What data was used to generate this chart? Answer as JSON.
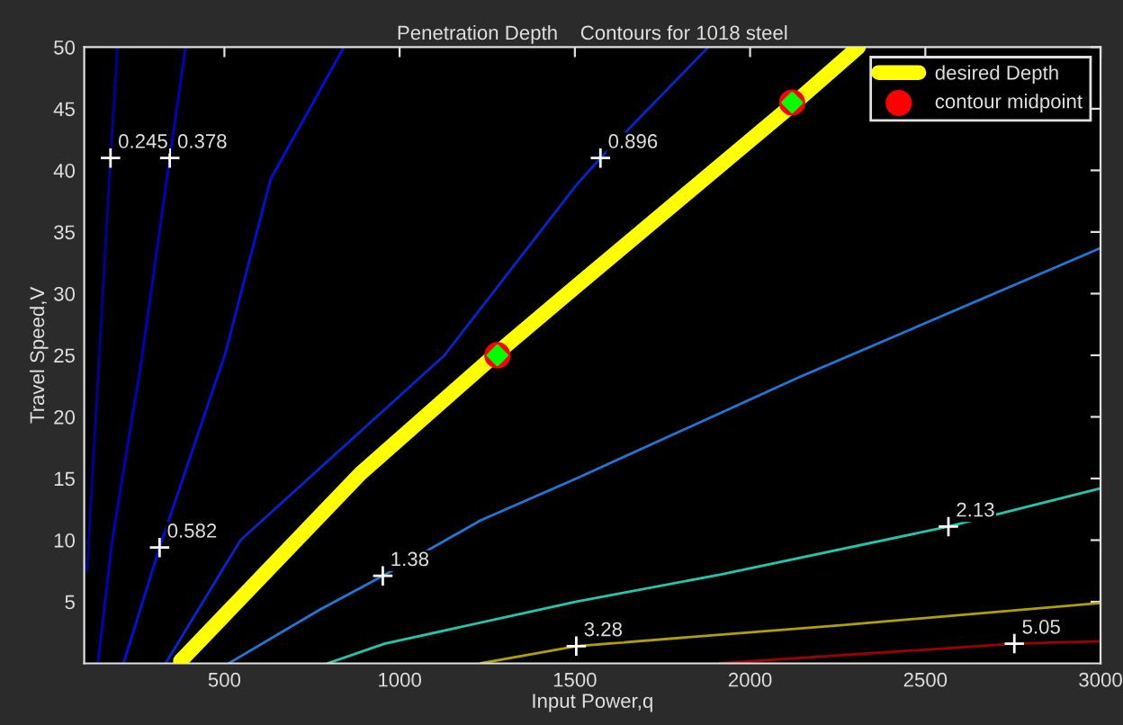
{
  "chart_data": {
    "type": "line",
    "title": "Penetration Depth    Contours for 1018 steel",
    "xlabel": "Input Power,q",
    "ylabel": "Travel Speed,V",
    "xlim": [
      100,
      3000
    ],
    "ylim": [
      0,
      50
    ],
    "xticks": [
      500,
      1000,
      1500,
      2000,
      2500,
      3000
    ],
    "yticks": [
      5,
      10,
      15,
      20,
      25,
      30,
      35,
      40,
      45,
      50
    ],
    "grid": false,
    "legend": "top right",
    "series": [
      {
        "color": "#0000a0",
        "x": [
          108,
          175,
          195
        ],
        "values": [
          7.5,
          41,
          50
        ]
      },
      {
        "color": "#0000c8",
        "x": [
          139,
          180,
          264,
          344,
          389
        ],
        "values": [
          0,
          10,
          24.7,
          41,
          50
        ]
      },
      {
        "color": "#0010e0",
        "x": [
          212,
          315,
          503,
          632,
          841
        ],
        "values": [
          0,
          9.4,
          25.2,
          39.3,
          50
        ]
      },
      {
        "color": "#0028d0",
        "x": [
          332,
          546,
          1128,
          1504,
          1573,
          1881
        ],
        "values": [
          0,
          10,
          25,
          38.8,
          41,
          50
        ]
      },
      {
        "color": "#1e78d8",
        "x": [
          512,
          769,
          952,
          1231,
          1504,
          2139,
          3000
        ],
        "values": [
          0,
          4.3,
          7.1,
          11.6,
          15,
          23.2,
          33.7
        ]
      },
      {
        "color": "#20c8b0",
        "x": [
          794,
          957,
          1504,
          1914,
          2566,
          3000
        ],
        "values": [
          0,
          1.6,
          5,
          7.2,
          11.1,
          14.2
        ]
      },
      {
        "color": "#b0a000",
        "x": [
          1231,
          1504,
          2258,
          3000
        ],
        "values": [
          0,
          1.4,
          3.1,
          4.9
        ]
      },
      {
        "color": "#a00000",
        "x": [
          1914,
          2754,
          3000
        ],
        "values": [
          0,
          1.6,
          1.8
        ]
      },
      {
        "name": "desired Depth",
        "color": "#ffff00",
        "x": [
          375,
          888,
          1279,
          1504,
          2120,
          2309
        ],
        "values": [
          0.2,
          15.4,
          25.2,
          30.6,
          45.3,
          50
        ]
      },
      {
        "name": "contour midpoint",
        "type": "scatter",
        "marker": "circle",
        "color": "#ff0000",
        "x": [
          1279,
          2120
        ],
        "values": [
          25,
          45.5
        ]
      },
      {
        "type": "scatter",
        "marker": "diamond",
        "color": "#00ff00",
        "x": [
          1279,
          2120
        ],
        "values": [
          25,
          45.5
        ]
      },
      {
        "type": "scatter",
        "marker": "cross",
        "color": "#ffffff",
        "x": [
          175,
          344,
          315,
          1573,
          952,
          2566,
          1504,
          2754
        ],
        "values": [
          41,
          41,
          9.4,
          41,
          7.1,
          11.1,
          1.4,
          1.6
        ]
      }
    ],
    "annotations": [
      {
        "text": "0.245",
        "x": 175,
        "y": 41
      },
      {
        "text": "0.378",
        "x": 344,
        "y": 41
      },
      {
        "text": "0.582",
        "x": 315,
        "y": 9.4
      },
      {
        "text": "0.896",
        "x": 1573,
        "y": 41
      },
      {
        "text": "1.38",
        "x": 952,
        "y": 7.1
      },
      {
        "text": "2.13",
        "x": 2566,
        "y": 11.1
      },
      {
        "text": "3.28",
        "x": 1504,
        "y": 1.4
      },
      {
        "text": "5.05",
        "x": 2754,
        "y": 1.6
      }
    ]
  }
}
